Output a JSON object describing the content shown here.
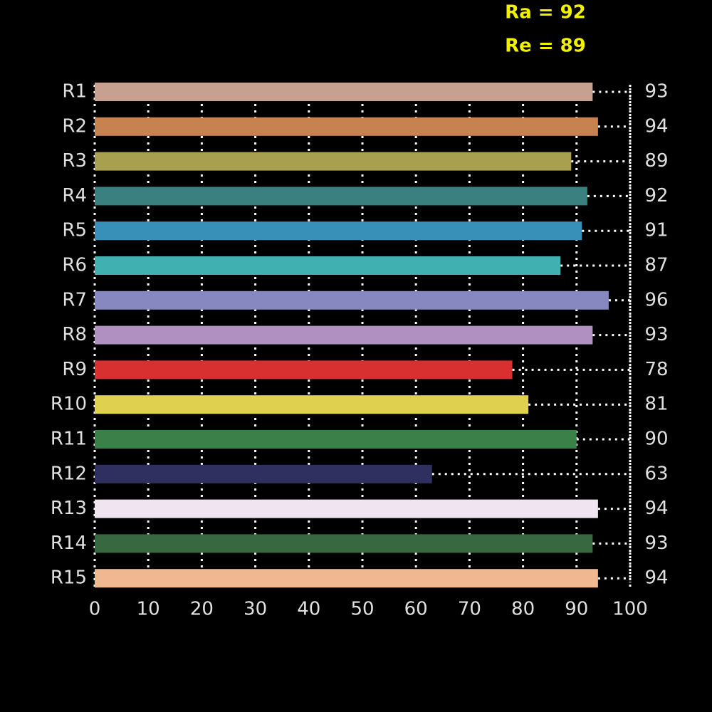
{
  "chart_data": {
    "type": "bar",
    "orientation": "horizontal",
    "annotations": [
      "Ra = 92",
      "Re = 89"
    ],
    "categories": [
      "R1",
      "R2",
      "R3",
      "R4",
      "R5",
      "R6",
      "R7",
      "R8",
      "R9",
      "R10",
      "R11",
      "R12",
      "R13",
      "R14",
      "R15"
    ],
    "values": [
      93,
      94,
      89,
      92,
      91,
      87,
      96,
      93,
      78,
      81,
      90,
      63,
      94,
      93,
      94
    ],
    "colors": [
      "#c8a090",
      "#c8824f",
      "#a8a04f",
      "#3a8080",
      "#3890b8",
      "#40b0b0",
      "#8888c0",
      "#b090c0",
      "#d83030",
      "#e0d050",
      "#3a8048",
      "#303060",
      "#f0e4f0",
      "#386840",
      "#f0b890"
    ],
    "xlim": [
      0,
      100
    ],
    "xticks": [
      0,
      10,
      20,
      30,
      40,
      50,
      60,
      70,
      80,
      90,
      100
    ],
    "grid": true
  }
}
